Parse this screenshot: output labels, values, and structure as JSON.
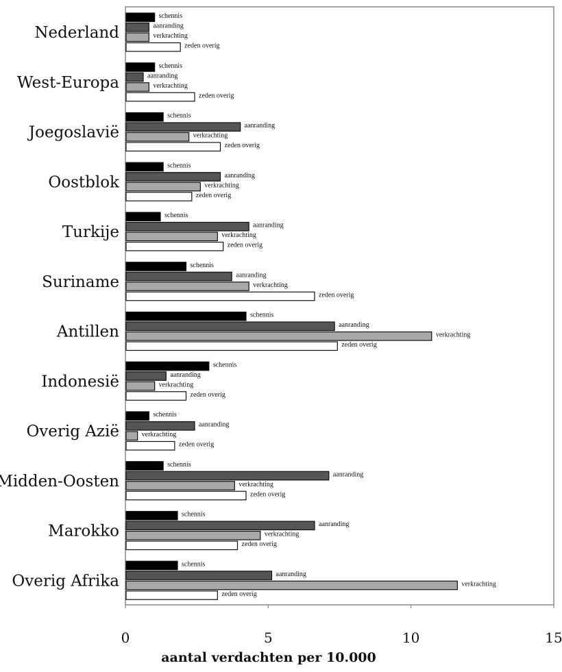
{
  "chart_data": {
    "type": "bar",
    "orientation": "horizontal",
    "title": "",
    "xlabel": "aantal verdachten per 10.000",
    "ylabel": "",
    "xlim": [
      0,
      15
    ],
    "xticks": [
      0,
      5,
      10,
      15
    ],
    "grid": false,
    "categories": [
      "Nederland",
      "West-Europa",
      "Joegoslavië",
      "Oostblok",
      "Turkije",
      "Suriname",
      "Antillen",
      "Indonesië",
      "Overig Azië",
      "Midden-Oosten",
      "Marokko",
      "Overig Afrika"
    ],
    "series": [
      {
        "name": "schennis",
        "color": "#000000",
        "values": [
          1.0,
          1.0,
          1.3,
          1.3,
          1.2,
          2.1,
          4.2,
          2.9,
          0.8,
          1.3,
          1.8,
          1.8
        ]
      },
      {
        "name": "aanranding",
        "color": "#555555",
        "values": [
          0.8,
          0.6,
          4.0,
          3.3,
          4.3,
          3.7,
          7.3,
          1.4,
          2.4,
          7.1,
          6.6,
          5.1
        ]
      },
      {
        "name": "verkrachting",
        "color": "#a8a8a8",
        "values": [
          0.8,
          0.8,
          2.2,
          2.6,
          3.2,
          4.3,
          10.7,
          1.0,
          0.4,
          3.8,
          4.7,
          11.6
        ]
      },
      {
        "name": "zeden overig",
        "color": "#ffffff",
        "values": [
          1.9,
          2.4,
          3.3,
          2.3,
          3.4,
          6.6,
          7.4,
          2.1,
          1.7,
          4.2,
          3.9,
          3.2
        ]
      }
    ]
  }
}
